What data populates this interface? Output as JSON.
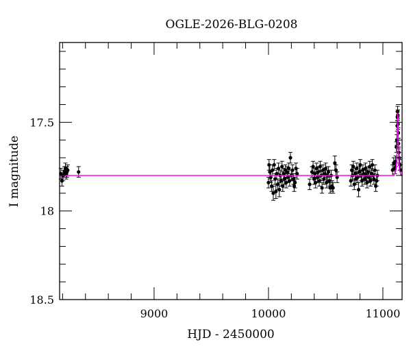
{
  "chart_data": {
    "type": "scatter",
    "title": "OGLE-2026-BLG-0208",
    "xlabel": "HJD - 2450000",
    "ylabel": "I magnitude",
    "xlim": [
      8174,
      11168
    ],
    "ylim": [
      18.5,
      17.05
    ],
    "y_inverted": true,
    "xticks": [
      9000,
      10000,
      11000
    ],
    "xtick_labels": [
      "9000",
      "10000",
      "11000"
    ],
    "yticks": [
      17.5,
      18,
      18.5
    ],
    "ytick_labels": [
      "17.5",
      "18",
      "18.5"
    ],
    "x_minor_step": 200,
    "y_minor_step": 0.1,
    "grid": false,
    "colors": {
      "data": "#000000",
      "model": "#ff00ff"
    },
    "series": [
      {
        "kind": "data_with_errors",
        "points": [
          [
            8185,
            17.79,
            0.03
          ],
          [
            8195,
            17.83,
            0.03
          ],
          [
            8205,
            17.8,
            0.03
          ],
          [
            8215,
            17.78,
            0.03
          ],
          [
            8225,
            17.76,
            0.03
          ],
          [
            8232,
            17.79,
            0.03
          ],
          [
            8238,
            17.78,
            0.03
          ],
          [
            8245,
            17.77,
            0.03
          ],
          [
            8340,
            17.78,
            0.03
          ],
          [
            10000,
            17.84,
            0.03
          ],
          [
            10005,
            17.74,
            0.03
          ],
          [
            10012,
            17.78,
            0.04
          ],
          [
            10020,
            17.81,
            0.03
          ],
          [
            10028,
            17.86,
            0.03
          ],
          [
            10035,
            17.77,
            0.03
          ],
          [
            10042,
            17.9,
            0.04
          ],
          [
            10050,
            17.74,
            0.03
          ],
          [
            10058,
            17.82,
            0.03
          ],
          [
            10065,
            17.89,
            0.04
          ],
          [
            10072,
            17.79,
            0.03
          ],
          [
            10080,
            17.85,
            0.03
          ],
          [
            10088,
            17.76,
            0.03
          ],
          [
            10095,
            17.88,
            0.04
          ],
          [
            10102,
            17.8,
            0.03
          ],
          [
            10110,
            17.83,
            0.03
          ],
          [
            10118,
            17.75,
            0.03
          ],
          [
            10125,
            17.86,
            0.03
          ],
          [
            10132,
            17.79,
            0.03
          ],
          [
            10140,
            17.82,
            0.03
          ],
          [
            10148,
            17.77,
            0.03
          ],
          [
            10155,
            17.84,
            0.03
          ],
          [
            10162,
            17.78,
            0.03
          ],
          [
            10170,
            17.81,
            0.03
          ],
          [
            10178,
            17.76,
            0.03
          ],
          [
            10185,
            17.83,
            0.03
          ],
          [
            10192,
            17.7,
            0.03
          ],
          [
            10200,
            17.8,
            0.03
          ],
          [
            10210,
            17.77,
            0.03
          ],
          [
            10218,
            17.82,
            0.03
          ],
          [
            10225,
            17.86,
            0.03
          ],
          [
            10232,
            17.84,
            0.03
          ],
          [
            10240,
            17.76,
            0.03
          ],
          [
            10250,
            17.79,
            0.03
          ],
          [
            10360,
            17.85,
            0.03
          ],
          [
            10380,
            17.78,
            0.03
          ],
          [
            10390,
            17.75,
            0.03
          ],
          [
            10398,
            17.82,
            0.03
          ],
          [
            10405,
            17.79,
            0.03
          ],
          [
            10412,
            17.84,
            0.03
          ],
          [
            10420,
            17.76,
            0.03
          ],
          [
            10428,
            17.81,
            0.03
          ],
          [
            10436,
            17.78,
            0.03
          ],
          [
            10444,
            17.83,
            0.03
          ],
          [
            10452,
            17.75,
            0.03
          ],
          [
            10460,
            17.8,
            0.03
          ],
          [
            10468,
            17.87,
            0.03
          ],
          [
            10476,
            17.77,
            0.03
          ],
          [
            10484,
            17.82,
            0.03
          ],
          [
            10492,
            17.79,
            0.03
          ],
          [
            10500,
            17.76,
            0.03
          ],
          [
            10508,
            17.84,
            0.03
          ],
          [
            10516,
            17.8,
            0.03
          ],
          [
            10524,
            17.78,
            0.03
          ],
          [
            10532,
            17.83,
            0.03
          ],
          [
            10540,
            17.87,
            0.03
          ],
          [
            10548,
            17.8,
            0.03
          ],
          [
            10556,
            17.86,
            0.03
          ],
          [
            10564,
            17.87,
            0.03
          ],
          [
            10580,
            17.73,
            0.04
          ],
          [
            10590,
            17.77,
            0.03
          ],
          [
            10600,
            17.81,
            0.03
          ],
          [
            10720,
            17.83,
            0.03
          ],
          [
            10728,
            17.77,
            0.03
          ],
          [
            10735,
            17.8,
            0.03
          ],
          [
            10742,
            17.75,
            0.03
          ],
          [
            10750,
            17.85,
            0.03
          ],
          [
            10758,
            17.79,
            0.03
          ],
          [
            10765,
            17.82,
            0.03
          ],
          [
            10772,
            17.76,
            0.03
          ],
          [
            10780,
            17.81,
            0.03
          ],
          [
            10788,
            17.88,
            0.04
          ],
          [
            10795,
            17.78,
            0.03
          ],
          [
            10802,
            17.74,
            0.03
          ],
          [
            10810,
            17.8,
            0.03
          ],
          [
            10818,
            17.83,
            0.03
          ],
          [
            10825,
            17.77,
            0.03
          ],
          [
            10832,
            17.79,
            0.03
          ],
          [
            10840,
            17.82,
            0.03
          ],
          [
            10848,
            17.76,
            0.03
          ],
          [
            10855,
            17.8,
            0.03
          ],
          [
            10862,
            17.84,
            0.03
          ],
          [
            10870,
            17.78,
            0.03
          ],
          [
            10878,
            17.81,
            0.03
          ],
          [
            10885,
            17.75,
            0.03
          ],
          [
            10892,
            17.83,
            0.03
          ],
          [
            10900,
            17.79,
            0.03
          ],
          [
            10908,
            17.74,
            0.03
          ],
          [
            10915,
            17.8,
            0.03
          ],
          [
            10922,
            17.82,
            0.03
          ],
          [
            10930,
            17.77,
            0.03
          ],
          [
            10938,
            17.86,
            0.03
          ],
          [
            10945,
            17.83,
            0.03
          ],
          [
            10952,
            17.8,
            0.03
          ],
          [
            11085,
            17.77,
            0.03
          ],
          [
            11095,
            17.73,
            0.03
          ],
          [
            11105,
            17.76,
            0.03
          ],
          [
            11112,
            17.72,
            0.03
          ],
          [
            11118,
            17.64,
            0.03
          ],
          [
            11122,
            17.6,
            0.03
          ],
          [
            11125,
            17.52,
            0.03
          ],
          [
            11127,
            17.47,
            0.03
          ],
          [
            11129,
            17.44,
            0.03
          ],
          [
            11131,
            17.46,
            0.03
          ],
          [
            11133,
            17.51,
            0.03
          ],
          [
            11135,
            17.56,
            0.03
          ],
          [
            11137,
            17.62,
            0.03
          ],
          [
            11140,
            17.67,
            0.03
          ],
          [
            11143,
            17.7,
            0.03
          ],
          [
            11148,
            17.74,
            0.03
          ],
          [
            11155,
            17.77,
            0.03
          ]
        ]
      },
      {
        "kind": "model",
        "points": [
          [
            8174,
            17.8
          ],
          [
            11090,
            17.8
          ],
          [
            11105,
            17.79
          ],
          [
            11115,
            17.77
          ],
          [
            11120,
            17.73
          ],
          [
            11124,
            17.64
          ],
          [
            11127,
            17.54
          ],
          [
            11129,
            17.47
          ],
          [
            11130,
            17.45
          ],
          [
            11131,
            17.47
          ],
          [
            11133,
            17.54
          ],
          [
            11136,
            17.64
          ],
          [
            11140,
            17.73
          ],
          [
            11145,
            17.77
          ],
          [
            11155,
            17.79
          ],
          [
            11168,
            17.8
          ]
        ]
      }
    ]
  }
}
